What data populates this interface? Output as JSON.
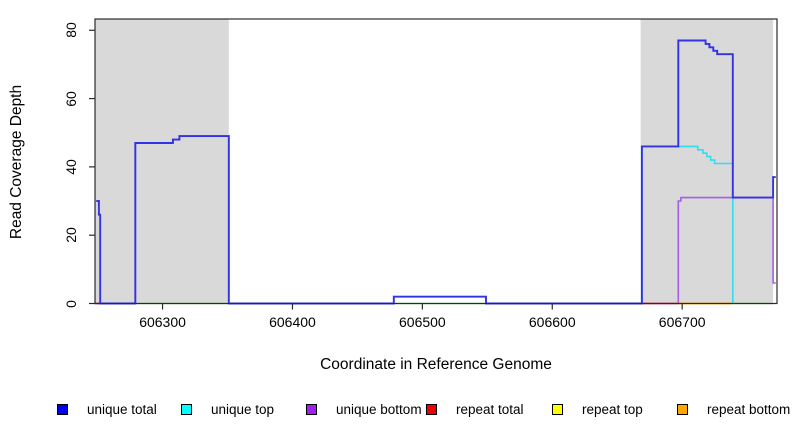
{
  "axes": {
    "x_label": "Coordinate in Reference Genome",
    "y_label": "Read Coverage Depth"
  },
  "chart_data": {
    "type": "line",
    "title": "",
    "xlabel": "Coordinate in Reference Genome",
    "ylabel": "Read Coverage Depth",
    "xlim": [
      606248,
      606773
    ],
    "ylim": [
      0,
      83.3
    ],
    "x_ticks": [
      606300,
      606400,
      606500,
      606600,
      606700
    ],
    "y_ticks": [
      0,
      20,
      40,
      60,
      80
    ],
    "grid": false,
    "legend_position": "bottom",
    "highlight_regions": [
      {
        "name": "repeat-region-left",
        "x0": 606248,
        "x1": 606351,
        "color": "#d9d9d9"
      },
      {
        "name": "repeat-region-right",
        "x0": 606668,
        "x1": 606770,
        "color": "#d9d9d9"
      }
    ],
    "series": [
      {
        "name": "zero-baseline-green",
        "label": "",
        "color": "#8CD98C",
        "width": 1.5,
        "segments": [
          [
            [
              606279,
              0
            ],
            [
              606351,
              0
            ]
          ],
          [
            [
              606478,
              0
            ],
            [
              606549,
              0
            ]
          ],
          [
            [
              606739,
              0
            ],
            [
              606770,
              0
            ]
          ]
        ]
      },
      {
        "name": "repeat-top",
        "label": "repeat top",
        "color": "#FFFF00",
        "width": 1.6,
        "segments": []
      },
      {
        "name": "unique-bottom",
        "label": "unique bottom",
        "color": "#A85CE8",
        "width": 1.6,
        "segments": [
          [
            [
              606248,
              0
            ],
            [
              606279,
              0
            ],
            [
              606279,
              47
            ],
            [
              606308,
              47
            ],
            [
              606308,
              48
            ],
            [
              606313,
              48
            ],
            [
              606313,
              49
            ],
            [
              606351,
              49
            ],
            [
              606351,
              0
            ],
            [
              606478,
              0
            ],
            [
              606478,
              2
            ],
            [
              606549,
              2
            ],
            [
              606549,
              0
            ],
            [
              606697,
              0
            ],
            [
              606697,
              30
            ],
            [
              606699,
              30
            ],
            [
              606699,
              31
            ],
            [
              606770,
              31
            ],
            [
              606770,
              6
            ],
            [
              606772,
              6
            ]
          ]
        ]
      },
      {
        "name": "repeat-total",
        "label": "repeat total",
        "color": "#EE3333",
        "width": 1.6,
        "segments": [
          [
            [
              606248,
              0
            ],
            [
              606252,
              0
            ]
          ],
          [
            [
              606669,
              0
            ],
            [
              606697,
              0
            ]
          ]
        ]
      },
      {
        "name": "repeat-bottom",
        "label": "repeat bottom",
        "color": "#FFA500",
        "width": 1.8,
        "segments": [
          [
            [
              606697,
              0
            ],
            [
              606739,
              0
            ]
          ]
        ]
      },
      {
        "name": "unique-top",
        "label": "unique top",
        "color": "#33DDEE",
        "width": 1.6,
        "segments": [
          [
            [
              606669,
              0
            ],
            [
              606669,
              46
            ],
            [
              606712,
              46
            ],
            [
              606712,
              45
            ],
            [
              606716,
              45
            ],
            [
              606716,
              44
            ],
            [
              606719,
              44
            ],
            [
              606719,
              43
            ],
            [
              606722,
              43
            ],
            [
              606722,
              42
            ],
            [
              606725,
              42
            ],
            [
              606725,
              41
            ],
            [
              606739,
              41
            ],
            [
              606739,
              0
            ]
          ]
        ]
      },
      {
        "name": "unique-total",
        "label": "unique total",
        "color": "#3333E6",
        "width": 1.9,
        "segments": [
          [
            [
              606249,
              30
            ],
            [
              606251,
              30
            ],
            [
              606251,
              26
            ],
            [
              606252,
              26
            ],
            [
              606252,
              0
            ],
            [
              606279,
              0
            ],
            [
              606279,
              47
            ],
            [
              606308,
              47
            ],
            [
              606308,
              48
            ],
            [
              606313,
              48
            ],
            [
              606313,
              49
            ],
            [
              606351,
              49
            ],
            [
              606351,
              0
            ],
            [
              606478,
              0
            ],
            [
              606478,
              2
            ],
            [
              606549,
              2
            ],
            [
              606549,
              0
            ],
            [
              606669,
              0
            ],
            [
              606669,
              46
            ],
            [
              606697,
              46
            ],
            [
              606697,
              77
            ],
            [
              606718,
              77
            ],
            [
              606718,
              76
            ],
            [
              606721,
              76
            ],
            [
              606721,
              75
            ],
            [
              606724,
              75
            ],
            [
              606724,
              74
            ],
            [
              606727,
              74
            ],
            [
              606727,
              73
            ],
            [
              606739,
              73
            ],
            [
              606739,
              31
            ],
            [
              606770,
              31
            ],
            [
              606770,
              37
            ],
            [
              606772,
              37
            ]
          ]
        ]
      }
    ]
  },
  "legend": {
    "items": [
      {
        "label": "unique total",
        "color": "#0000EE"
      },
      {
        "label": "unique top",
        "color": "#00FFFF"
      },
      {
        "label": "unique bottom",
        "color": "#A020F0"
      },
      {
        "label": "repeat total",
        "color": "#EE0000"
      },
      {
        "label": "repeat top",
        "color": "#FFFF00"
      },
      {
        "label": "repeat bottom",
        "color": "#FFA500"
      }
    ]
  }
}
